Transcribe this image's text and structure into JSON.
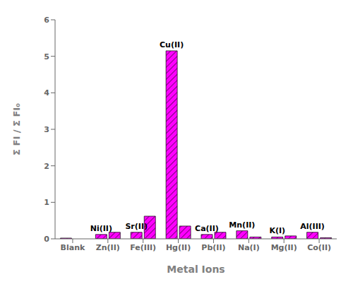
{
  "chart_data": {
    "type": "bar",
    "xlabel": "Metal Ions",
    "ylabel": "Σ FI / Σ FI₀",
    "categories": [
      "Blank",
      "Zn(II)",
      "Fe(III)",
      "Hg(II)",
      "Pb(II)",
      "Na(I)",
      "Mg(II)",
      "Co(II)"
    ],
    "series": [
      {
        "color": "#FF00FF",
        "values": [
          0.02,
          0.12,
          0.18,
          5.15,
          0.12,
          0.22,
          0.05,
          0.18
        ]
      },
      {
        "color": "#FF00FF",
        "values": [
          null,
          0.18,
          0.62,
          0.35,
          0.18,
          0.05,
          0.08,
          0.03
        ]
      }
    ],
    "annotations": [
      {
        "category": "Zn(II)",
        "text": "Ni(II)"
      },
      {
        "category": "Fe(III)",
        "text": "Sr(II)"
      },
      {
        "category": "Hg(II)",
        "text": "Cu(II)"
      },
      {
        "category": "Pb(II)",
        "text": "Ca(II)"
      },
      {
        "category": "Na(I)",
        "text": "Mn(II)"
      },
      {
        "category": "Mg(II)",
        "text": "K(I)"
      },
      {
        "category": "Co(II)",
        "text": "Al(III)"
      }
    ],
    "ylim": [
      0,
      6
    ],
    "yticks": [
      0,
      1,
      2,
      3,
      4,
      5,
      6
    ],
    "grid": false
  }
}
